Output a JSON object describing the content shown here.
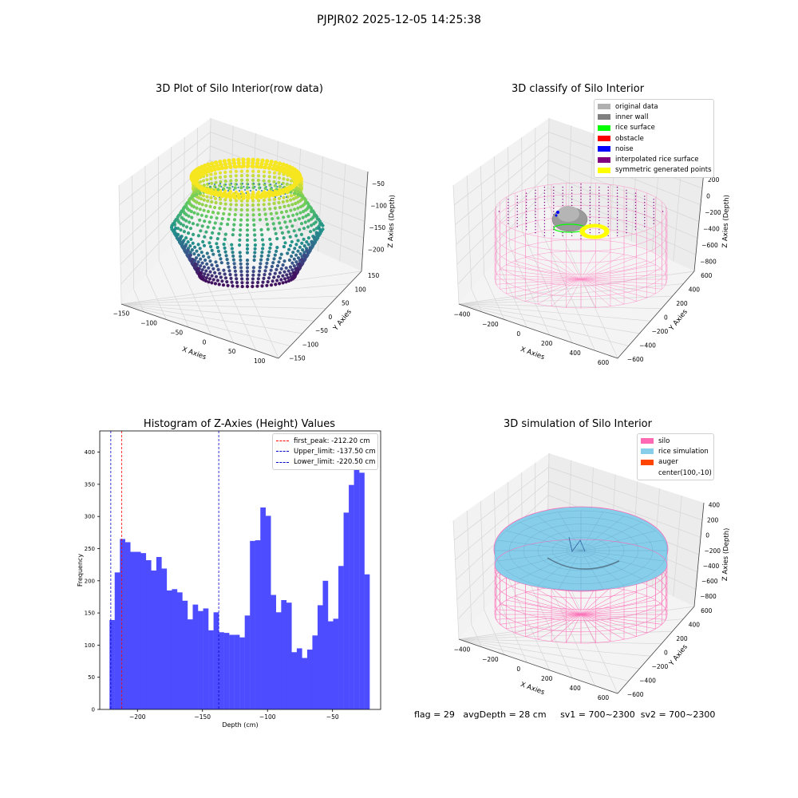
{
  "suptitle": "PJPJR02 2025-12-05 14:25:38",
  "footer": {
    "flag": "flag = 29",
    "avg_depth": "avgDepth = 28 cm",
    "sv1": "sv1 = 700~2300",
    "sv2": "sv2 = 700~2300"
  },
  "colors": {
    "hist_bar": "#4d4dff",
    "peak_line": "#ff0000",
    "limit_line": "#0000cc",
    "silo_wire": "#ff69b4",
    "rice_fill": "#87ceeb",
    "inner_wall": "#9a9a9a",
    "symmetric": "#ffff00"
  },
  "chart_data": [
    {
      "type": "scatter3d",
      "title": "3D Plot of Silo Interior(row data)",
      "xlabel": "X Axies",
      "ylabel": "Y Axies",
      "zlabel": "Z Axies (Depth)",
      "x_ticks": [
        "−150",
        "−100",
        "−50",
        "0",
        "50",
        "100"
      ],
      "y_ticks": [
        "150",
        "100",
        "50",
        "0",
        "−50",
        "−100",
        "−150"
      ],
      "z_ticks": [
        "−50",
        "−100",
        "−150",
        "−200"
      ],
      "colormap": "viridis"
    },
    {
      "type": "scatter3d",
      "title": "3D classify of Silo Interior",
      "xlabel": "X Axies",
      "ylabel": "Y Axies",
      "zlabel": "Z Axies (Depth)",
      "x_ticks": [
        "−400",
        "−200",
        "0",
        "200",
        "400",
        "600"
      ],
      "y_ticks": [
        "600",
        "400",
        "200",
        "0",
        "−200",
        "−400",
        "−600"
      ],
      "z_ticks": [
        "200",
        "0",
        "−200",
        "−400",
        "−600",
        "−800"
      ],
      "z_tick_top_partial": "00",
      "legend": [
        {
          "label": "original data",
          "color": "#b0b0b0"
        },
        {
          "label": "inner wall",
          "color": "#808080"
        },
        {
          "label": "rice surface",
          "color": "#00ff00"
        },
        {
          "label": "obstacle",
          "color": "#ff0000"
        },
        {
          "label": "noise",
          "color": "#0000ff"
        },
        {
          "label": "interpolated rice surface",
          "color": "#800080"
        },
        {
          "label": "symmetric generated points",
          "color": "#ffff00"
        }
      ]
    },
    {
      "type": "bar",
      "title": "Histogram of Z-Axies (Height) Values",
      "xlabel": "Depth (cm)",
      "ylabel": "Frequency",
      "xlim": [
        -229,
        -13
      ],
      "ylim": [
        0,
        433
      ],
      "x_ticks": [
        -200,
        -150,
        -100,
        -50
      ],
      "x_tick_labels": [
        "−200",
        "−150",
        "−100",
        "−50"
      ],
      "y_ticks": [
        0,
        50,
        100,
        150,
        200,
        250,
        300,
        350,
        400
      ],
      "bin_start": -221.5,
      "bin_width": 4,
      "values": [
        139,
        213,
        265,
        260,
        245,
        245,
        243,
        232,
        216,
        237,
        219,
        185,
        187,
        182,
        169,
        140,
        163,
        153,
        157,
        123,
        151,
        120,
        119,
        116,
        116,
        112,
        146,
        262,
        263,
        314,
        301,
        178,
        151,
        170,
        166,
        89,
        95,
        80,
        93,
        115,
        162,
        200,
        137,
        141,
        223,
        306,
        349,
        410,
        368,
        210
      ],
      "vlines": [
        {
          "name": "first_peak",
          "label": "first_peak: -212.20 cm",
          "x": -212.2,
          "color": "#ff0000"
        },
        {
          "name": "upper_limit",
          "label": "Upper_limit: -137.50 cm",
          "x": -137.5,
          "color": "#0000cc"
        },
        {
          "name": "lower_limit",
          "label": "Lower_limit: -220.50 cm",
          "x": -220.5,
          "color": "#0000cc"
        }
      ],
      "legend_position": "upper right"
    },
    {
      "type": "surface3d",
      "title": "3D simulation of Silo Interior",
      "xlabel": "X Axies",
      "ylabel": "Y Axies",
      "zlabel": "Z Axies (Depth)",
      "x_ticks": [
        "−400",
        "−200",
        "0",
        "200",
        "400",
        "600"
      ],
      "y_ticks": [
        "600",
        "400",
        "200",
        "0",
        "−200",
        "−400",
        "−600"
      ],
      "z_ticks": [
        "400",
        "200",
        "0",
        "−200",
        "−400",
        "−600",
        "−800"
      ],
      "legend": [
        {
          "label": "silo",
          "color": "#ff69b4"
        },
        {
          "label": "rice simulation",
          "color": "#87ceeb"
        },
        {
          "label": "auger",
          "color": "#ff4500"
        },
        {
          "label": "center(100,-10)",
          "color": "none"
        }
      ]
    }
  ]
}
